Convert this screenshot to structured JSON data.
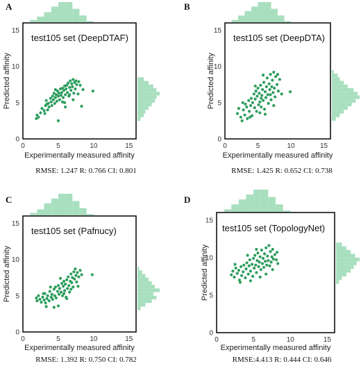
{
  "chart_data": [
    {
      "type": "scatter",
      "panel": "A",
      "title": "test105 set (DeepDTAF)",
      "xlabel": "Experimentally measured affinity",
      "ylabel": "Predicted affinity",
      "xlim": [
        0,
        16
      ],
      "ylim": [
        0,
        16
      ],
      "xticks": [
        0,
        5,
        10,
        15
      ],
      "yticks": [
        0,
        5,
        10,
        15
      ],
      "metrics": "RMSE: 1.247 R: 0.766 CI: 0.801",
      "color": "#2e9e5e",
      "hist_color": "#a8dfbf",
      "points": [
        [
          1.9,
          2.8
        ],
        [
          2.0,
          3.3
        ],
        [
          2.2,
          3.0
        ],
        [
          2.5,
          3.6
        ],
        [
          2.7,
          4.2
        ],
        [
          3.0,
          3.9
        ],
        [
          3.1,
          3.5
        ],
        [
          3.2,
          4.6
        ],
        [
          3.3,
          5.3
        ],
        [
          3.5,
          4.0
        ],
        [
          3.6,
          4.9
        ],
        [
          3.7,
          4.4
        ],
        [
          3.9,
          5.6
        ],
        [
          4.0,
          5.1
        ],
        [
          4.1,
          4.6
        ],
        [
          4.2,
          5.9
        ],
        [
          4.3,
          5.4
        ],
        [
          4.4,
          6.3
        ],
        [
          4.5,
          4.9
        ],
        [
          4.6,
          5.7
        ],
        [
          4.7,
          6.1
        ],
        [
          4.8,
          5.2
        ],
        [
          4.9,
          6.6
        ],
        [
          5.0,
          5.9
        ],
        [
          5.0,
          2.5
        ],
        [
          5.1,
          6.3
        ],
        [
          5.2,
          5.4
        ],
        [
          5.3,
          6.9
        ],
        [
          5.4,
          6.0
        ],
        [
          5.5,
          6.4
        ],
        [
          5.6,
          7.0
        ],
        [
          5.7,
          5.7
        ],
        [
          5.8,
          6.7
        ],
        [
          5.9,
          7.3
        ],
        [
          6.0,
          6.1
        ],
        [
          6.0,
          4.4
        ],
        [
          6.1,
          6.9
        ],
        [
          6.2,
          7.4
        ],
        [
          6.3,
          6.4
        ],
        [
          6.4,
          7.7
        ],
        [
          6.5,
          5.9
        ],
        [
          6.6,
          7.1
        ],
        [
          6.7,
          8.0
        ],
        [
          6.8,
          6.7
        ],
        [
          6.9,
          7.6
        ],
        [
          7.0,
          7.2
        ],
        [
          7.1,
          8.2
        ],
        [
          7.2,
          6.3
        ],
        [
          7.3,
          7.8
        ],
        [
          7.4,
          6.9
        ],
        [
          7.5,
          8.0
        ],
        [
          7.6,
          7.5
        ],
        [
          7.8,
          6.2
        ],
        [
          7.9,
          7.9
        ],
        [
          8.1,
          7.4
        ],
        [
          8.3,
          4.5
        ],
        [
          8.5,
          6.8
        ],
        [
          9.9,
          6.6
        ],
        [
          3.4,
          4.8
        ],
        [
          4.6,
          6.8
        ],
        [
          5.6,
          5.1
        ],
        [
          6.6,
          6.1
        ],
        [
          7.1,
          5.4
        ],
        [
          5.9,
          5.0
        ]
      ],
      "hist_x_bins": [
        1,
        2,
        3,
        4,
        5,
        6,
        7,
        8,
        9,
        10
      ],
      "hist_x_counts": [
        2,
        5,
        9,
        14,
        18,
        18,
        12,
        6,
        1
      ],
      "hist_y_bins": [
        2.5,
        3,
        3.5,
        4,
        4.5,
        5,
        5.5,
        6,
        6.5,
        7,
        7.5,
        8,
        8.5
      ],
      "hist_y_counts": [
        2,
        4,
        5,
        7,
        9,
        11,
        12,
        14,
        12,
        10,
        7,
        4
      ]
    },
    {
      "type": "scatter",
      "panel": "B",
      "title": "test105 set (DeepDTA)",
      "xlabel": "Experimentally measured affinity",
      "ylabel": "Predicted affinity",
      "xlim": [
        0,
        16
      ],
      "ylim": [
        0,
        16
      ],
      "xticks": [
        0,
        5,
        10,
        15
      ],
      "yticks": [
        0,
        5,
        10,
        15
      ],
      "metrics": "RMSE: 1.425 R: 0.652 CI: 0.738",
      "color": "#2e9e5e",
      "hist_color": "#a8dfbf",
      "points": [
        [
          1.9,
          3.5
        ],
        [
          2.1,
          4.2
        ],
        [
          2.4,
          3.0
        ],
        [
          2.6,
          2.5
        ],
        [
          2.8,
          4.0
        ],
        [
          3.0,
          3.3
        ],
        [
          3.1,
          4.8
        ],
        [
          3.3,
          4.4
        ],
        [
          3.4,
          2.8
        ],
        [
          3.6,
          5.3
        ],
        [
          3.7,
          3.8
        ],
        [
          3.9,
          4.6
        ],
        [
          4.0,
          5.6
        ],
        [
          4.1,
          3.2
        ],
        [
          4.2,
          5.0
        ],
        [
          4.4,
          6.2
        ],
        [
          4.5,
          4.3
        ],
        [
          4.6,
          5.5
        ],
        [
          4.7,
          6.6
        ],
        [
          4.8,
          3.8
        ],
        [
          4.9,
          5.9
        ],
        [
          5.0,
          7.0
        ],
        [
          5.1,
          4.7
        ],
        [
          5.2,
          6.3
        ],
        [
          5.3,
          5.1
        ],
        [
          5.4,
          7.4
        ],
        [
          5.5,
          4.4
        ],
        [
          5.6,
          6.0
        ],
        [
          5.7,
          6.8
        ],
        [
          5.8,
          5.3
        ],
        [
          5.9,
          7.8
        ],
        [
          6.0,
          4.1
        ],
        [
          6.1,
          6.5
        ],
        [
          6.2,
          5.7
        ],
        [
          6.3,
          7.2
        ],
        [
          6.4,
          8.4
        ],
        [
          6.5,
          6.1
        ],
        [
          6.6,
          4.9
        ],
        [
          6.7,
          7.6
        ],
        [
          6.8,
          6.8
        ],
        [
          6.9,
          8.9
        ],
        [
          7.0,
          5.4
        ],
        [
          7.1,
          7.2
        ],
        [
          7.2,
          8.1
        ],
        [
          7.3,
          6.4
        ],
        [
          7.4,
          9.2
        ],
        [
          7.5,
          7.0
        ],
        [
          7.6,
          5.8
        ],
        [
          7.7,
          8.6
        ],
        [
          7.9,
          7.5
        ],
        [
          8.1,
          6.6
        ],
        [
          8.3,
          8.2
        ],
        [
          8.6,
          6.2
        ],
        [
          9.9,
          6.5
        ],
        [
          3.8,
          3.0
        ],
        [
          5.3,
          3.6
        ],
        [
          6.1,
          3.4
        ],
        [
          4.6,
          7.3
        ],
        [
          5.8,
          8.8
        ],
        [
          7.4,
          4.6
        ],
        [
          8.0,
          8.9
        ],
        [
          2.7,
          5.0
        ],
        [
          6.9,
          6.1
        ],
        [
          5.5,
          5.6
        ]
      ],
      "hist_x_bins": [
        1,
        2,
        3,
        4,
        5,
        6,
        7,
        8,
        9,
        10
      ],
      "hist_x_counts": [
        2,
        6,
        10,
        14,
        18,
        18,
        12,
        6,
        1
      ],
      "hist_y_bins": [
        2.5,
        3,
        3.5,
        4,
        4.5,
        5,
        5.5,
        6,
        6.5,
        7,
        7.5,
        8,
        8.5,
        9,
        9.5
      ],
      "hist_y_counts": [
        2,
        4,
        6,
        8,
        10,
        12,
        14,
        13,
        11,
        8,
        6,
        4,
        3,
        1
      ]
    },
    {
      "type": "scatter",
      "panel": "C",
      "title": "test105 set (Pafnucy)",
      "xlabel": "Experimentally measured affinity",
      "ylabel": "Predicted affinity",
      "xlim": [
        0,
        16
      ],
      "ylim": [
        0,
        16
      ],
      "xticks": [
        0,
        5,
        10,
        15
      ],
      "yticks": [
        0,
        5,
        10,
        15
      ],
      "metrics": "RMSE: 1.392 R: 0.750 CI: 0.782",
      "color": "#2e9e5e",
      "hist_color": "#a8dfbf",
      "points": [
        [
          1.9,
          4.7
        ],
        [
          2.0,
          4.3
        ],
        [
          2.2,
          5.0
        ],
        [
          2.4,
          4.5
        ],
        [
          2.6,
          4.1
        ],
        [
          2.8,
          4.8
        ],
        [
          3.0,
          4.4
        ],
        [
          3.1,
          5.3
        ],
        [
          3.2,
          4.0
        ],
        [
          3.4,
          4.6
        ],
        [
          3.5,
          5.0
        ],
        [
          3.7,
          4.3
        ],
        [
          3.8,
          5.6
        ],
        [
          4.0,
          4.8
        ],
        [
          4.1,
          5.2
        ],
        [
          4.2,
          4.5
        ],
        [
          4.4,
          5.9
        ],
        [
          4.5,
          5.0
        ],
        [
          4.6,
          6.2
        ],
        [
          4.7,
          4.7
        ],
        [
          4.9,
          5.6
        ],
        [
          5.0,
          6.4
        ],
        [
          5.0,
          3.6
        ],
        [
          5.1,
          5.2
        ],
        [
          5.2,
          6.0
        ],
        [
          5.4,
          5.5
        ],
        [
          5.5,
          6.7
        ],
        [
          5.6,
          5.0
        ],
        [
          5.7,
          6.3
        ],
        [
          5.8,
          7.0
        ],
        [
          5.9,
          5.7
        ],
        [
          6.0,
          6.6
        ],
        [
          6.1,
          4.8
        ],
        [
          6.2,
          7.2
        ],
        [
          6.3,
          6.0
        ],
        [
          6.4,
          7.6
        ],
        [
          6.5,
          6.4
        ],
        [
          6.6,
          5.5
        ],
        [
          6.7,
          7.0
        ],
        [
          6.8,
          8.0
        ],
        [
          6.9,
          6.8
        ],
        [
          7.0,
          7.5
        ],
        [
          7.1,
          6.2
        ],
        [
          7.2,
          8.3
        ],
        [
          7.3,
          7.3
        ],
        [
          7.4,
          8.7
        ],
        [
          7.5,
          7.8
        ],
        [
          7.6,
          6.9
        ],
        [
          7.7,
          8.2
        ],
        [
          7.9,
          7.6
        ],
        [
          8.1,
          8.5
        ],
        [
          8.3,
          7.9
        ],
        [
          9.8,
          7.9
        ],
        [
          3.3,
          3.5
        ],
        [
          4.4,
          3.4
        ],
        [
          6.2,
          4.6
        ],
        [
          5.3,
          7.4
        ],
        [
          3.9,
          6.2
        ],
        [
          6.8,
          5.9
        ],
        [
          7.8,
          6.3
        ],
        [
          2.9,
          5.3
        ],
        [
          5.8,
          5.3
        ]
      ],
      "hist_x_bins": [
        1,
        2,
        3,
        4,
        5,
        6,
        7,
        8,
        9,
        10
      ],
      "hist_x_counts": [
        2,
        5,
        10,
        14,
        18,
        18,
        12,
        6,
        1
      ],
      "hist_y_bins": [
        3,
        3.5,
        4,
        4.5,
        5,
        5.5,
        6,
        6.5,
        7,
        7.5,
        8,
        8.5,
        9
      ],
      "hist_y_counts": [
        2,
        5,
        9,
        12,
        10,
        14,
        11,
        9,
        7,
        5,
        3,
        1
      ]
    },
    {
      "type": "scatter",
      "panel": "D",
      "title": "test105 set (TopologyNet)",
      "xlabel": "Experimentally measured affinity",
      "ylabel": "Predicted affinity",
      "xlim": [
        0,
        16
      ],
      "ylim": [
        0,
        16
      ],
      "xticks": [
        0,
        5,
        10,
        15
      ],
      "yticks": [
        0,
        5,
        10,
        15
      ],
      "metrics": "RMSE:4.413 R: 0.444 CI: 0.646",
      "color": "#2e9e5e",
      "hist_color": "#a8dfbf",
      "points": [
        [
          2.0,
          7.7
        ],
        [
          2.2,
          8.2
        ],
        [
          2.4,
          7.4
        ],
        [
          2.6,
          8.6
        ],
        [
          2.8,
          7.9
        ],
        [
          3.0,
          8.3
        ],
        [
          3.1,
          7.0
        ],
        [
          3.3,
          8.8
        ],
        [
          3.4,
          7.6
        ],
        [
          3.6,
          8.1
        ],
        [
          3.7,
          9.0
        ],
        [
          3.9,
          7.3
        ],
        [
          4.0,
          8.5
        ],
        [
          4.1,
          9.3
        ],
        [
          4.3,
          7.8
        ],
        [
          4.4,
          8.9
        ],
        [
          4.5,
          9.7
        ],
        [
          4.6,
          8.2
        ],
        [
          4.8,
          9.1
        ],
        [
          4.9,
          7.5
        ],
        [
          5.0,
          9.9
        ],
        [
          5.1,
          8.6
        ],
        [
          5.2,
          10.3
        ],
        [
          5.3,
          9.0
        ],
        [
          5.4,
          8.0
        ],
        [
          5.5,
          9.6
        ],
        [
          5.6,
          10.6
        ],
        [
          5.7,
          8.8
        ],
        [
          5.8,
          9.4
        ],
        [
          5.9,
          10.1
        ],
        [
          6.0,
          8.4
        ],
        [
          6.1,
          11.0
        ],
        [
          6.2,
          9.2
        ],
        [
          6.3,
          9.9
        ],
        [
          6.4,
          8.7
        ],
        [
          6.5,
          10.5
        ],
        [
          6.6,
          9.5
        ],
        [
          6.7,
          11.3
        ],
        [
          6.8,
          9.0
        ],
        [
          6.9,
          10.2
        ],
        [
          7.0,
          9.6
        ],
        [
          7.1,
          11.6
        ],
        [
          7.2,
          8.9
        ],
        [
          7.3,
          10.8
        ],
        [
          7.4,
          9.4
        ],
        [
          7.5,
          10.1
        ],
        [
          7.6,
          11.1
        ],
        [
          7.7,
          9.8
        ],
        [
          7.9,
          10.4
        ],
        [
          8.1,
          9.7
        ],
        [
          8.2,
          10.7
        ],
        [
          8.3,
          9.2
        ],
        [
          3.2,
          6.7
        ],
        [
          4.6,
          6.9
        ],
        [
          5.9,
          7.4
        ],
        [
          6.7,
          7.8
        ],
        [
          4.2,
          10.3
        ],
        [
          5.4,
          11.1
        ],
        [
          7.6,
          8.4
        ],
        [
          2.5,
          9.1
        ]
      ],
      "hist_x_bins": [
        1,
        2,
        3,
        4,
        5,
        6,
        7,
        8,
        9,
        10
      ],
      "hist_x_counts": [
        2,
        6,
        10,
        14,
        18,
        18,
        12,
        6,
        1
      ],
      "hist_y_bins": [
        6.5,
        7,
        7.5,
        8,
        8.5,
        9,
        9.5,
        10,
        10.5,
        11,
        11.5,
        12
      ],
      "hist_y_counts": [
        2,
        4,
        7,
        10,
        12,
        14,
        16,
        13,
        10,
        7,
        4
      ]
    }
  ]
}
